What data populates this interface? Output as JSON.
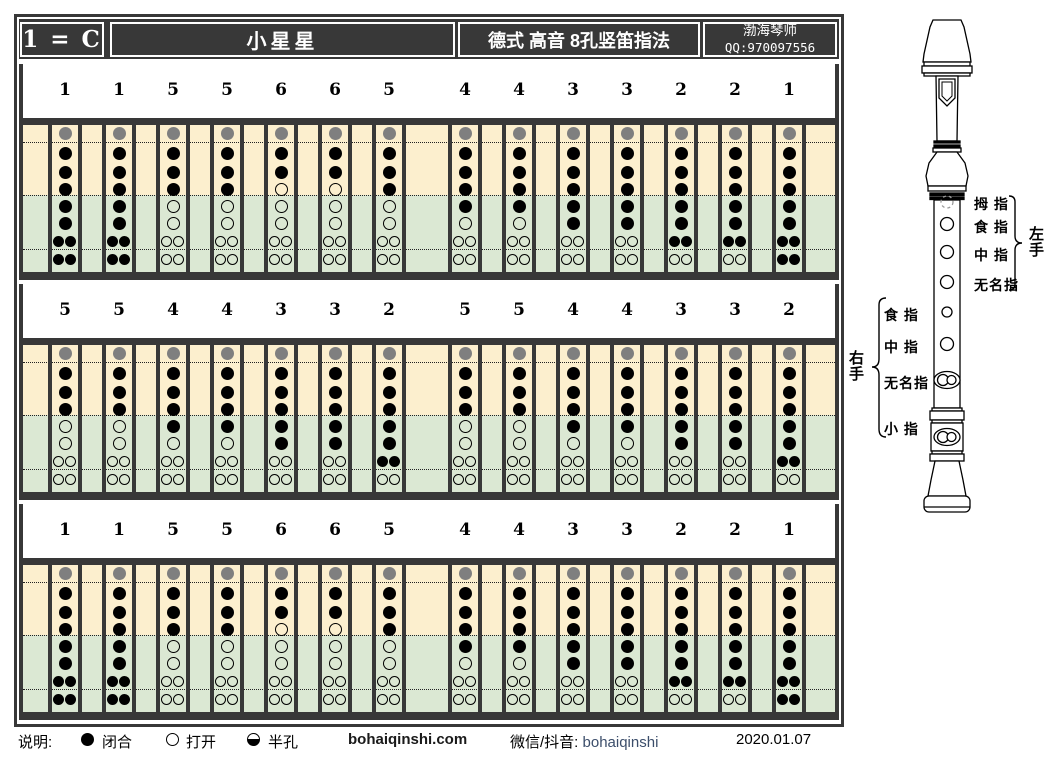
{
  "header": {
    "key": "1 = C",
    "title": "小星星",
    "subtitle": "德式 高音 8孔竖笛指法",
    "author": "渤海琴师",
    "contact": "QQ:970097556"
  },
  "systems": [
    {
      "groups": [
        [
          "1",
          "1",
          "5",
          "5",
          "6",
          "6",
          "5"
        ],
        [
          "4",
          "4",
          "3",
          "3",
          "2",
          "2",
          "1"
        ]
      ]
    },
    {
      "groups": [
        [
          "5",
          "5",
          "4",
          "4",
          "3",
          "3",
          "2"
        ],
        [
          "5",
          "5",
          "4",
          "4",
          "3",
          "3",
          "2"
        ]
      ]
    },
    {
      "groups": [
        [
          "1",
          "1",
          "5",
          "5",
          "6",
          "6",
          "5"
        ],
        [
          "4",
          "4",
          "3",
          "3",
          "2",
          "2",
          "1"
        ]
      ]
    }
  ],
  "fingerings": {
    "1": [
      "g",
      "c",
      "c",
      "c",
      "c",
      "c",
      "dc",
      "dc"
    ],
    "2": [
      "g",
      "c",
      "c",
      "c",
      "c",
      "c",
      "dc",
      "do"
    ],
    "3": [
      "g",
      "c",
      "c",
      "c",
      "c",
      "c",
      "do",
      "do"
    ],
    "4": [
      "g",
      "c",
      "c",
      "c",
      "c",
      "o",
      "do",
      "do"
    ],
    "5": [
      "g",
      "c",
      "c",
      "c",
      "o",
      "o",
      "do",
      "do"
    ],
    "6": [
      "g",
      "c",
      "c",
      "o",
      "o",
      "o",
      "do",
      "do"
    ]
  },
  "fingering_symbols": {
    "g": "thumb-hole-closed-gray",
    "c": "closed",
    "o": "open",
    "dc": "double-hole-closed",
    "do": "double-hole-open"
  },
  "legend": {
    "label": "说明:",
    "items": [
      {
        "symbol": "closed",
        "text": "闭合"
      },
      {
        "symbol": "open",
        "text": "打开"
      },
      {
        "symbol": "half",
        "text": "半孔"
      }
    ],
    "website": "bohaiqinshi.com",
    "social_label": "微信/抖音:",
    "social_value": "bohaiqinshi",
    "date": "2020.01.07"
  },
  "recorder": {
    "left_hand": {
      "label": "左手",
      "fingers": [
        "拇 指",
        "食 指",
        "中 指",
        "无名指"
      ]
    },
    "right_hand": {
      "label": "右手",
      "fingers": [
        "食 指",
        "中 指",
        "无名指",
        "小 指"
      ]
    }
  },
  "colors": {
    "frame_dark": "#383838",
    "thumb_zone_cream": "#fcefce",
    "hand_zone_green": "#dbe8d3",
    "thumb_hole_gray": "#7f7f7f"
  }
}
